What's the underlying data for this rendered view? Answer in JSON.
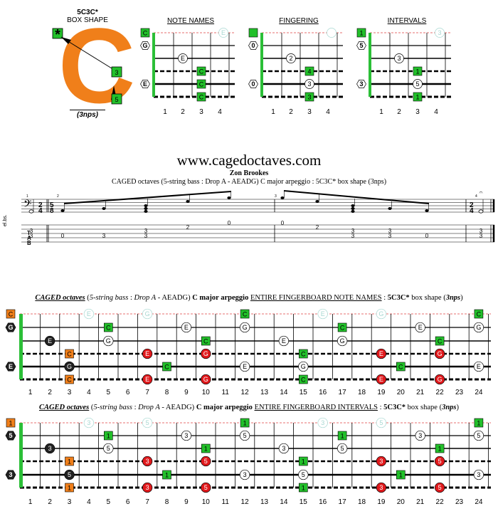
{
  "box": {
    "title": "5C3C*",
    "subtitle": "BOX SHAPE",
    "letter": "C",
    "marker_root": "*",
    "marker_3": "3",
    "marker_5": "5",
    "nps": "(3nps)"
  },
  "diagrams": {
    "note_names": {
      "label": "NOTE NAMES",
      "open_labels": [
        "C",
        "G",
        "",
        "",
        "E",
        ""
      ],
      "fret_numbers": [
        "1",
        "2",
        "3",
        "4"
      ]
    },
    "fingering": {
      "label": "FINGERING",
      "open_labels": [
        "",
        "0",
        "",
        "",
        "0",
        ""
      ],
      "fret_numbers": [
        "1",
        "2",
        "3",
        "4"
      ]
    },
    "intervals": {
      "label": "INTERVALS",
      "open_labels": [
        "1",
        "5",
        "",
        "",
        "3",
        ""
      ],
      "fret_numbers": [
        "1",
        "2",
        "3",
        "4"
      ]
    }
  },
  "header": {
    "site": "www.cagedoctaves.com",
    "composer": "Zon Brookes",
    "subtitle": "CAGED octaves (5-string bass : Drop A - AEADG) C major arpeggio : 5C3C* box shape (3nps)"
  },
  "notation": {
    "instrument": "el.bs.",
    "time_sig_a": [
      "2",
      "4"
    ],
    "time_sig_b": [
      "5",
      "8"
    ],
    "tab_label": [
      "T",
      "A",
      "B"
    ],
    "bar_numbers": [
      "1",
      "2",
      "3",
      "4"
    ],
    "tab_m1": [
      "3",
      "3"
    ],
    "tab_m2": [
      "0",
      "3",
      "3",
      "3",
      "2",
      "0"
    ],
    "tab_m3": [
      "0",
      "2",
      "3",
      "3",
      "3",
      "3",
      "0",
      "3"
    ],
    "tab_m4": [
      "3",
      "3"
    ]
  },
  "fretboard_notes": {
    "title_parts": [
      "CAGED octaves",
      " (",
      "5-string bass",
      " : ",
      "Drop A",
      " - AEADG) ",
      "C major arpeggio",
      " ",
      "ENTIRE FINGERBOARD NOTE NAMES",
      " : ",
      "5C3C*",
      " box shape (",
      "3nps",
      ")"
    ],
    "open_labels": [
      "C",
      "G",
      "",
      "",
      "E",
      ""
    ]
  },
  "fretboard_intervals": {
    "title_parts": [
      "CAGED octaves",
      " (",
      "5-string bass",
      " : ",
      "Drop A",
      " - AEADG) ",
      "C major arpeggio",
      " ",
      "ENTIRE FINGERBOARD INTERVALS",
      " : ",
      "5C3C*",
      " box shape (",
      "3nps",
      ")"
    ],
    "open_labels": [
      "1",
      "5",
      "",
      "",
      "3",
      ""
    ]
  },
  "fret_numbers": [
    "1",
    "2",
    "3",
    "4",
    "5",
    "6",
    "7",
    "8",
    "9",
    "10",
    "11",
    "12",
    "13",
    "14",
    "15",
    "16",
    "17",
    "18",
    "19",
    "20",
    "21",
    "22",
    "23",
    "24"
  ],
  "colors": {
    "green": "#22c02a",
    "orange": "#f07f1a",
    "red": "#e0191c",
    "ghost": "#a8d8d2",
    "nut": "#2bbf37"
  }
}
